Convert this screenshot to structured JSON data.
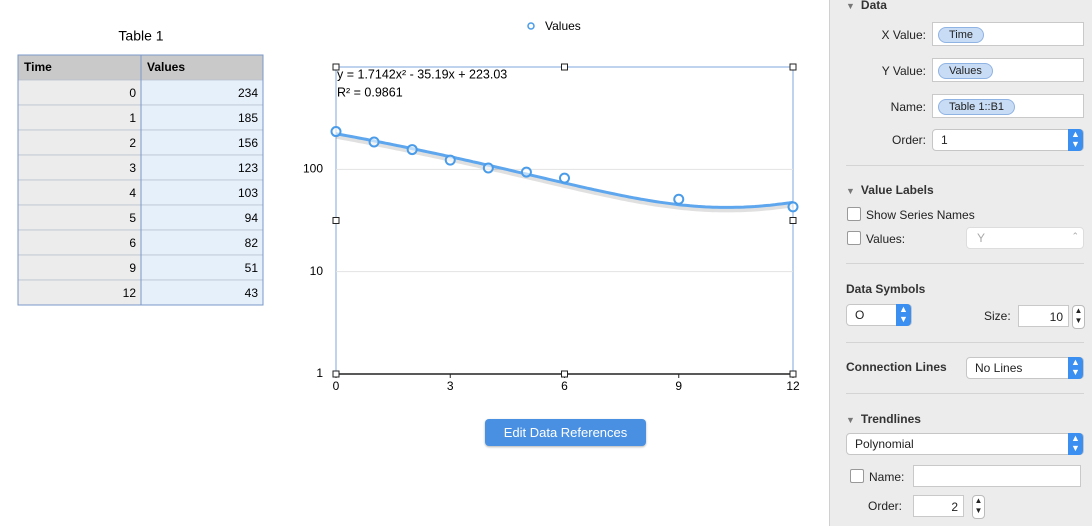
{
  "table": {
    "title": "Table 1",
    "columns": [
      "Time",
      "Values"
    ],
    "rows": [
      [
        0,
        234
      ],
      [
        1,
        185
      ],
      [
        2,
        156
      ],
      [
        3,
        123
      ],
      [
        4,
        103
      ],
      [
        5,
        94
      ],
      [
        6,
        82
      ],
      [
        9,
        51
      ],
      [
        12,
        43
      ]
    ]
  },
  "chart_data": {
    "type": "scatter",
    "series": [
      {
        "name": "Values",
        "color": "#4a9be8",
        "x": [
          0,
          1,
          2,
          3,
          4,
          5,
          6,
          9,
          12
        ],
        "values": [
          234,
          185,
          156,
          123,
          103,
          94,
          82,
          51,
          43
        ]
      }
    ],
    "xlim": [
      0,
      12
    ],
    "xticks": [
      0,
      3,
      6,
      9,
      12
    ],
    "ylim": [
      1,
      1000
    ],
    "yticks": [
      1,
      10,
      100
    ],
    "log_scale": true,
    "grid": true,
    "legend": "top",
    "trendline": {
      "type": "polynomial",
      "coefficients": [
        1.7142,
        -35.19,
        223.03
      ],
      "equation": "y = 1.7142x² - 35.19x + 223.03",
      "r_squared": "R² = 0.9861"
    }
  },
  "button": "Edit Data References",
  "sidebar": {
    "data": {
      "heading": "Data",
      "x_label": "X Value:",
      "x_value": "Time",
      "y_label": "Y Value:",
      "y_value": "Values",
      "name_label": "Name:",
      "name": "Table 1::B1",
      "order_label": "Order:",
      "order": 1
    },
    "value_labels": {
      "heading": "Value Labels",
      "show_series_names": "Show Series Names",
      "values_label": "Values:",
      "values_choice": "Y"
    },
    "data_symbols": {
      "heading": "Data Symbols",
      "symbol": "O",
      "size_label": "Size:",
      "size": 10
    },
    "connection_lines": {
      "heading": "Connection Lines",
      "choice": "No Lines"
    },
    "trendlines": {
      "heading": "Trendlines",
      "type": "Polynomial",
      "name_label": "Name:",
      "order_label": "Order:",
      "order": 2
    }
  }
}
